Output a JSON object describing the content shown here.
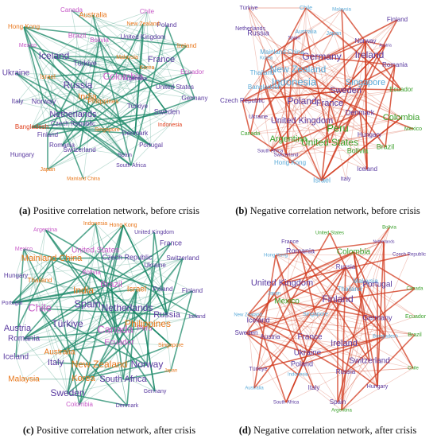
{
  "colors": {
    "positive_edge": "#1e8a6a",
    "negative_edge": "#d23a1e",
    "purple": "#5a3aa0",
    "orange": "#e8761a",
    "green": "#3aa02a",
    "light_blue": "#5aaad8",
    "pink": "#c85ac8",
    "red": "#e0401e",
    "dark_purple": "#3a2a80"
  },
  "panels": [
    {
      "id": "a",
      "caption_letter": "(a)",
      "caption_text": "Positive correlation network, before crisis",
      "edge_color": "#1e8a6a",
      "nodes": [
        {
          "label": "Canada",
          "color": "#c85ac8"
        },
        {
          "label": "Australia",
          "color": "#e8761a"
        },
        {
          "label": "Hong Kong",
          "color": "#e8761a"
        },
        {
          "label": "Brazil",
          "color": "#c85ac8"
        },
        {
          "label": "Bolivia",
          "color": "#c85ac8"
        },
        {
          "label": "Mexico",
          "color": "#c85ac8"
        },
        {
          "label": "Iceland",
          "color": "#5a3aa0"
        },
        {
          "label": "Türkiye",
          "color": "#5a3aa0"
        },
        {
          "label": "Ukraine",
          "color": "#5a3aa0"
        },
        {
          "label": "Israel",
          "color": "#e8761a"
        },
        {
          "label": "Russia",
          "color": "#5a3aa0"
        },
        {
          "label": "Colombia",
          "color": "#c85ac8"
        },
        {
          "label": "India",
          "color": "#e8761a"
        },
        {
          "label": "Italy",
          "color": "#5a3aa0"
        },
        {
          "label": "Norway",
          "color": "#5a3aa0"
        },
        {
          "label": "Netherlands",
          "color": "#5a3aa0"
        },
        {
          "label": "Bangladesh",
          "color": "#e0401e"
        },
        {
          "label": "Finland",
          "color": "#5a3aa0"
        },
        {
          "label": "Czech Republic",
          "color": "#5a3aa0"
        },
        {
          "label": "Romania",
          "color": "#5a3aa0"
        },
        {
          "label": "Hungary",
          "color": "#5a3aa0"
        },
        {
          "label": "Switzerland",
          "color": "#5a3aa0"
        },
        {
          "label": "Japan",
          "color": "#e8761a"
        },
        {
          "label": "Mainland China",
          "color": "#e8761a"
        },
        {
          "label": "Spain",
          "color": "#5a3aa0"
        },
        {
          "label": "South Africa",
          "color": "#5a3aa0"
        },
        {
          "label": "Singapore",
          "color": "#e8761a"
        },
        {
          "label": "Denmark",
          "color": "#5a3aa0"
        },
        {
          "label": "Portugal",
          "color": "#5a3aa0"
        },
        {
          "label": "Philippines",
          "color": "#e8761a"
        },
        {
          "label": "Türkiye",
          "color": "#5a3aa0"
        },
        {
          "label": "Sweden",
          "color": "#5a3aa0"
        },
        {
          "label": "Indonesia",
          "color": "#e0401e"
        },
        {
          "label": "Germany",
          "color": "#5a3aa0"
        },
        {
          "label": "United States",
          "color": "#5a3aa0"
        },
        {
          "label": "Ecuador",
          "color": "#c85ac8"
        },
        {
          "label": "Argentina",
          "color": "#5a3aa0"
        },
        {
          "label": "France",
          "color": "#5a3aa0"
        },
        {
          "label": "Korea",
          "color": "#e8761a"
        },
        {
          "label": "Ireland",
          "color": "#e8761a"
        },
        {
          "label": "Malaysia",
          "color": "#e8761a"
        },
        {
          "label": "United Kingdom",
          "color": "#5a3aa0"
        },
        {
          "label": "Poland",
          "color": "#5a3aa0"
        },
        {
          "label": "New Zealand",
          "color": "#e8761a"
        },
        {
          "label": "Chile",
          "color": "#c85ac8"
        }
      ]
    },
    {
      "id": "b",
      "caption_letter": "(b)",
      "caption_text": "Negative correlation network, before crisis",
      "edge_color": "#d23a1e",
      "nodes": [
        {
          "label": "Türkiye",
          "color": "#5a3aa0"
        },
        {
          "label": "Chile",
          "color": "#5aaad8"
        },
        {
          "label": "Malaysia",
          "color": "#5aaad8"
        },
        {
          "label": "Finland",
          "color": "#5a3aa0"
        },
        {
          "label": "Netherlands",
          "color": "#5a3aa0"
        },
        {
          "label": "Russia",
          "color": "#5a3aa0"
        },
        {
          "label": "Australia",
          "color": "#5aaad8"
        },
        {
          "label": "Japan",
          "color": "#5aaad8"
        },
        {
          "label": "Norway",
          "color": "#5a3aa0"
        },
        {
          "label": "Austria",
          "color": "#5a3aa0"
        },
        {
          "label": "Spain",
          "color": "#5a3aa0"
        },
        {
          "label": "Mainland China",
          "color": "#5aaad8"
        },
        {
          "label": "Ireland",
          "color": "#5a3aa0"
        },
        {
          "label": "Korea",
          "color": "#5aaad8"
        },
        {
          "label": "Germany",
          "color": "#5a3aa0"
        },
        {
          "label": "Romania",
          "color": "#5a3aa0"
        },
        {
          "label": "New Zealand",
          "color": "#5aaad8"
        },
        {
          "label": "Thailand",
          "color": "#5aaad8"
        },
        {
          "label": "Indonesia",
          "color": "#5aaad8"
        },
        {
          "label": "Singapore",
          "color": "#5aaad8"
        },
        {
          "label": "Bangladesh",
          "color": "#5aaad8"
        },
        {
          "label": "Sweden",
          "color": "#5a3aa0"
        },
        {
          "label": "Ecuador",
          "color": "#3aa02a"
        },
        {
          "label": "Czech Republic",
          "color": "#5a3aa0"
        },
        {
          "label": "Poland",
          "color": "#5a3aa0"
        },
        {
          "label": "France",
          "color": "#5a3aa0"
        },
        {
          "label": "Denmark",
          "color": "#5a3aa0"
        },
        {
          "label": "Ukraine",
          "color": "#5a3aa0"
        },
        {
          "label": "United Kingdom",
          "color": "#5a3aa0"
        },
        {
          "label": "Peru",
          "color": "#3aa02a"
        },
        {
          "label": "Colombia",
          "color": "#3aa02a"
        },
        {
          "label": "Mexico",
          "color": "#3aa02a"
        },
        {
          "label": "Canada",
          "color": "#3aa02a"
        },
        {
          "label": "Hungary",
          "color": "#5a3aa0"
        },
        {
          "label": "Argentina",
          "color": "#3aa02a"
        },
        {
          "label": "United States",
          "color": "#3aa02a"
        },
        {
          "label": "Brazil",
          "color": "#3aa02a"
        },
        {
          "label": "Bolivia",
          "color": "#3aa02a"
        },
        {
          "label": "South Africa",
          "color": "#5a3aa0"
        },
        {
          "label": "Switzerland",
          "color": "#5a3aa0"
        },
        {
          "label": "Hong Kong",
          "color": "#5aaad8"
        },
        {
          "label": "Iceland",
          "color": "#5a3aa0"
        },
        {
          "label": "Israel",
          "color": "#5aaad8"
        },
        {
          "label": "Italy",
          "color": "#5a3aa0"
        }
      ]
    },
    {
      "id": "c",
      "caption_letter": "(c)",
      "caption_text": "Positive correlation network, after crisis",
      "edge_color": "#1e8a6a",
      "nodes": [
        {
          "label": "Indonesia",
          "color": "#e8761a"
        },
        {
          "label": "Hong Kong",
          "color": "#e8761a"
        },
        {
          "label": "Argentina",
          "color": "#c85ac8"
        },
        {
          "label": "United Kingdom",
          "color": "#5a3aa0"
        },
        {
          "label": "France",
          "color": "#5a3aa0"
        },
        {
          "label": "Mexico",
          "color": "#c85ac8"
        },
        {
          "label": "United States",
          "color": "#c85ac8"
        },
        {
          "label": "Mainland China",
          "color": "#e8761a"
        },
        {
          "label": "Czech Republic",
          "color": "#5a3aa0"
        },
        {
          "label": "Switzerland",
          "color": "#5a3aa0"
        },
        {
          "label": "Ukraine",
          "color": "#5a3aa0"
        },
        {
          "label": "Bolivia",
          "color": "#c85ac8"
        },
        {
          "label": "Hungary",
          "color": "#5a3aa0"
        },
        {
          "label": "Thailand",
          "color": "#e8761a"
        },
        {
          "label": "Brazil",
          "color": "#c85ac8"
        },
        {
          "label": "Israel",
          "color": "#e8761a"
        },
        {
          "label": "Poland",
          "color": "#5a3aa0"
        },
        {
          "label": "Finland",
          "color": "#5a3aa0"
        },
        {
          "label": "India",
          "color": "#e8761a"
        },
        {
          "label": "Portugal",
          "color": "#5a3aa0"
        },
        {
          "label": "Spain",
          "color": "#5a3aa0"
        },
        {
          "label": "Netherlands",
          "color": "#5a3aa0"
        },
        {
          "label": "Chile",
          "color": "#c85ac8"
        },
        {
          "label": "Russia",
          "color": "#5a3aa0"
        },
        {
          "label": "Ireland",
          "color": "#5a3aa0"
        },
        {
          "label": "Türkiye",
          "color": "#5a3aa0"
        },
        {
          "label": "Peru",
          "color": "#c85ac8"
        },
        {
          "label": "Philippines",
          "color": "#e8761a"
        },
        {
          "label": "Austria",
          "color": "#5a3aa0"
        },
        {
          "label": "Canada",
          "color": "#c85ac8"
        },
        {
          "label": "Romania",
          "color": "#5a3aa0"
        },
        {
          "label": "Singapore",
          "color": "#e8761a"
        },
        {
          "label": "Ecuador",
          "color": "#c85ac8"
        },
        {
          "label": "Iceland",
          "color": "#5a3aa0"
        },
        {
          "label": "Australia",
          "color": "#e8761a"
        },
        {
          "label": "Italy",
          "color": "#5a3aa0"
        },
        {
          "label": "New Zealand",
          "color": "#e8761a"
        },
        {
          "label": "Norway",
          "color": "#5a3aa0"
        },
        {
          "label": "Japan",
          "color": "#e8761a"
        },
        {
          "label": "Malaysia",
          "color": "#e8761a"
        },
        {
          "label": "Korea",
          "color": "#e8761a"
        },
        {
          "label": "South Africa",
          "color": "#5a3aa0"
        },
        {
          "label": "Germany",
          "color": "#5a3aa0"
        },
        {
          "label": "Sweden",
          "color": "#5a3aa0"
        },
        {
          "label": "Colombia",
          "color": "#c85ac8"
        },
        {
          "label": "Denmark",
          "color": "#5a3aa0"
        }
      ]
    },
    {
      "id": "d",
      "caption_letter": "(d)",
      "caption_text": "Negative correlation network, after crisis",
      "edge_color": "#d23a1e",
      "nodes": [
        {
          "label": "Bolivia",
          "color": "#3aa02a"
        },
        {
          "label": "United States",
          "color": "#3aa02a"
        },
        {
          "label": "Netherlands",
          "color": "#5a3aa0"
        },
        {
          "label": "France",
          "color": "#5a3aa0"
        },
        {
          "label": "Romania",
          "color": "#5a3aa0"
        },
        {
          "label": "Colombia",
          "color": "#3aa02a"
        },
        {
          "label": "Czech Republic",
          "color": "#5a3aa0"
        },
        {
          "label": "Hong Kong",
          "color": "#5aaad8"
        },
        {
          "label": "Russia",
          "color": "#5a3aa0"
        },
        {
          "label": "United Kingdom",
          "color": "#5a3aa0"
        },
        {
          "label": "Thailand",
          "color": "#5aaad8"
        },
        {
          "label": "Malaysia",
          "color": "#5aaad8"
        },
        {
          "label": "Portugal",
          "color": "#5a3aa0"
        },
        {
          "label": "Japan",
          "color": "#5aaad8"
        },
        {
          "label": "Canada",
          "color": "#3aa02a"
        },
        {
          "label": "Mexico",
          "color": "#3aa02a"
        },
        {
          "label": "Finland",
          "color": "#5a3aa0"
        },
        {
          "label": "New Zealand",
          "color": "#5aaad8"
        },
        {
          "label": "Iceland",
          "color": "#5a3aa0"
        },
        {
          "label": "Singapore",
          "color": "#5aaad8"
        },
        {
          "label": "Germany",
          "color": "#5a3aa0"
        },
        {
          "label": "Ecuador",
          "color": "#3aa02a"
        },
        {
          "label": "Sweden",
          "color": "#5a3aa0"
        },
        {
          "label": "Austria",
          "color": "#5a3aa0"
        },
        {
          "label": "France",
          "color": "#5a3aa0"
        },
        {
          "label": "Ukraine",
          "color": "#5a3aa0"
        },
        {
          "label": "Ireland",
          "color": "#5a3aa0"
        },
        {
          "label": "Bangladesh",
          "color": "#5aaad8"
        },
        {
          "label": "Brazil",
          "color": "#3aa02a"
        },
        {
          "label": "Poland",
          "color": "#5a3aa0"
        },
        {
          "label": "Switzerland",
          "color": "#5a3aa0"
        },
        {
          "label": "Türkiye",
          "color": "#5a3aa0"
        },
        {
          "label": "Indonesia",
          "color": "#5aaad8"
        },
        {
          "label": "Russia",
          "color": "#5a3aa0"
        },
        {
          "label": "Chile",
          "color": "#3aa02a"
        },
        {
          "label": "Australia",
          "color": "#5aaad8"
        },
        {
          "label": "Italy",
          "color": "#5a3aa0"
        },
        {
          "label": "Hungary",
          "color": "#5a3aa0"
        },
        {
          "label": "South Africa",
          "color": "#5a3aa0"
        },
        {
          "label": "Spain",
          "color": "#5a3aa0"
        },
        {
          "label": "Argentina",
          "color": "#3aa02a"
        }
      ]
    }
  ]
}
